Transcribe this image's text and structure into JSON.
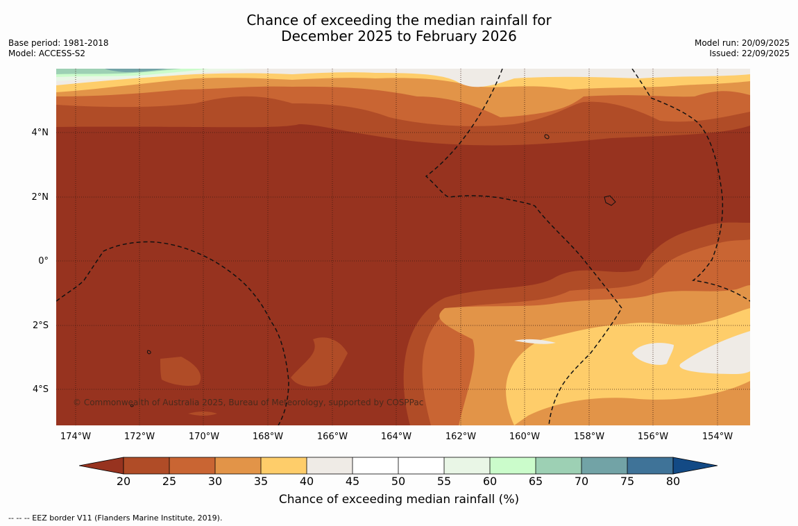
{
  "title": {
    "line1": "Chance of exceeding the median rainfall for",
    "line2": "December 2025 to February 2026"
  },
  "meta_left": {
    "base_period": "Base period: 1981-2018",
    "model": "Model: ACCESS-S2"
  },
  "meta_right": {
    "model_run": "Model run: 20/09/2025",
    "issued": "Issued: 22/09/2025"
  },
  "map": {
    "lat_labels": [
      "4°N",
      "2°N",
      "0°",
      "2°S",
      "4°S"
    ],
    "lon_labels": [
      "174°W",
      "172°W",
      "170°W",
      "168°W",
      "166°W",
      "164°W",
      "162°W",
      "160°W",
      "158°W",
      "156°W",
      "154°W"
    ],
    "copyright": "© Commonwealth of Australia 2025, Bureau of Meteorology, supported by COSPPac"
  },
  "colorbar": {
    "ticks": [
      "20",
      "25",
      "30",
      "35",
      "40",
      "45",
      "50",
      "55",
      "60",
      "65",
      "70",
      "75",
      "80"
    ],
    "colors": [
      "#97331f",
      "#b04c27",
      "#c96533",
      "#e29448",
      "#fecd6a",
      "#efebe6",
      "#ffffff",
      "#ffffff",
      "#e9f6e6",
      "#cbfccb",
      "#9dd0b4",
      "#72a3a6",
      "#3f7398",
      "#134a85"
    ],
    "label": "Chance of exceeding median rainfall (%)"
  },
  "footer": {
    "eez_note": "--  --  -- EEZ border V11 (Flanders Marine Institute, 2019)."
  }
}
